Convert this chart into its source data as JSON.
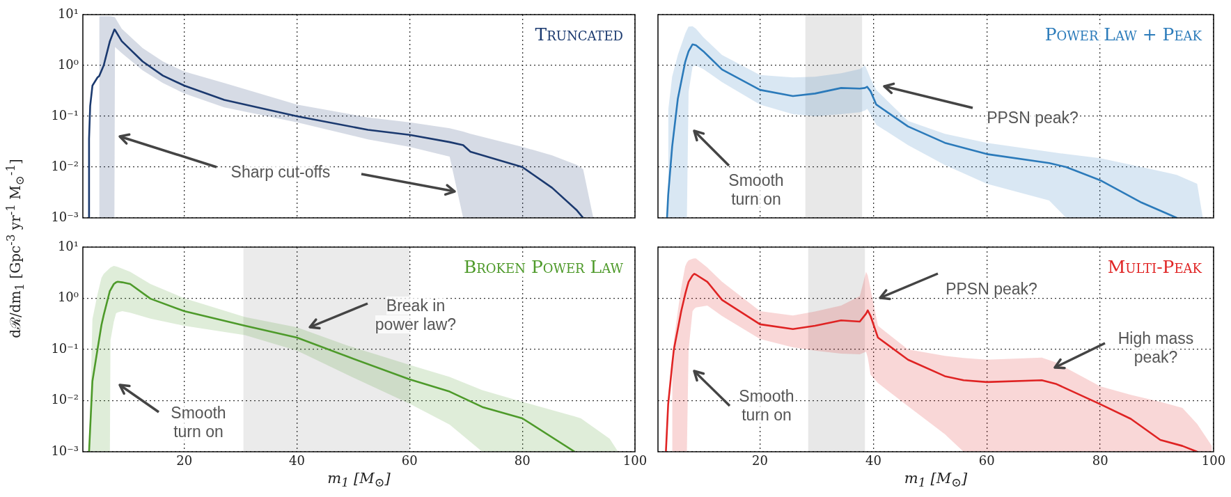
{
  "chart_data": [
    {
      "type": "line",
      "title": "Truncated",
      "log": true,
      "grid": true,
      "tick_labels": "y",
      "xlim": [
        2,
        100
      ],
      "xticks": [
        {
          "value": 20,
          "label": null
        },
        {
          "value": 40,
          "label": null
        },
        {
          "value": 60,
          "label": null
        },
        {
          "value": 80,
          "label": null
        },
        {
          "value": 100,
          "label": null
        }
      ],
      "ylim": [
        0.001,
        10
      ],
      "yticks": [
        {
          "value": 0.001,
          "label": "10⁻³"
        },
        {
          "value": 0.01,
          "label": "10⁻²"
        },
        {
          "value": 0.1,
          "label": "10⁻¹"
        },
        {
          "value": 1,
          "label": "10⁰"
        },
        {
          "value": 10,
          "label": "10¹"
        }
      ],
      "annotations": [
        "Sharp cut-offs"
      ],
      "series": [
        {
          "color": "#1b3a6f",
          "x": [
            3.0,
            3.1,
            3.3,
            3.7,
            4.6,
            4.9,
            5.7,
            6.8,
            7.6,
            7.7,
            8.9,
            12.6,
            16.2,
            20,
            27.1,
            40,
            52.6,
            60,
            67.1,
            69.5,
            70.8,
            80,
            85.3,
            89.7,
            90.8,
            92.6
          ],
          "values": [
            0.001,
            0.036,
            0.16,
            0.4,
            0.58,
            0.62,
            1.0,
            3.0,
            5.1,
            5.0,
            3.0,
            1.2,
            0.63,
            0.4,
            0.21,
            0.1,
            0.054,
            0.043,
            0.031,
            0.027,
            0.02,
            0.01,
            0.0039,
            0.0014,
            0.001,
            null
          ],
          "upper": [
            null,
            null,
            null,
            null,
            null,
            9.3,
            9.3,
            9.3,
            9.0,
            8.8,
            5.3,
            2.2,
            1.2,
            0.76,
            0.45,
            0.17,
            0.095,
            0.076,
            0.058,
            0.05,
            0.045,
            0.025,
            0.017,
            0.011,
            0.009,
            0.001
          ],
          "lower": [
            null,
            null,
            null,
            null,
            null,
            0.001,
            0.001,
            0.001,
            0.001,
            2.3,
            1.75,
            0.8,
            0.45,
            0.28,
            0.15,
            0.076,
            0.035,
            0.025,
            0.016,
            0.001,
            0.001,
            0.001,
            0.001,
            0.001,
            0.001,
            0.001
          ]
        }
      ]
    },
    {
      "type": "line",
      "title": "Power Law + Peak",
      "log": true,
      "grid": true,
      "tick_labels": false,
      "xlim": [
        2,
        100
      ],
      "xticks": [
        {
          "value": 20,
          "label": null
        },
        {
          "value": 40,
          "label": null
        },
        {
          "value": 60,
          "label": null
        },
        {
          "value": 80,
          "label": null
        },
        {
          "value": 100,
          "label": null
        }
      ],
      "ylim": [
        0.001,
        10
      ],
      "yticks": [
        {
          "value": 0.001,
          "label": null
        },
        {
          "value": 0.01,
          "label": null
        },
        {
          "value": 0.1,
          "label": null
        },
        {
          "value": 1,
          "label": null
        },
        {
          "value": 10,
          "label": null
        }
      ],
      "bands": [
        {
          "axis": "x",
          "from": 28,
          "to": 38,
          "color": "#e8e8e8"
        }
      ],
      "annotations": [
        "PPSN peak?",
        "Smooth turn on"
      ],
      "series": [
        {
          "color": "#2b7bba",
          "x": [
            3.6,
            3.8,
            4.5,
            5.5,
            6.8,
            7.1,
            7.4,
            8.1,
            8.7,
            10,
            13.3,
            20,
            25.8,
            29.7,
            34.3,
            37.6,
            38.5,
            38.9,
            39.5,
            40.5,
            46.1,
            52.6,
            60,
            71,
            74,
            80,
            87.3,
            91.9,
            93.5,
            97.1,
            98.1
          ],
          "values": [
            0.001,
            0.0028,
            0.025,
            0.22,
            1.17,
            1.5,
            1.9,
            2.6,
            2.5,
            1.9,
            0.83,
            0.33,
            0.25,
            0.28,
            0.36,
            0.35,
            0.36,
            0.38,
            0.31,
            0.17,
            0.063,
            0.03,
            0.018,
            0.012,
            0.01,
            0.0055,
            0.002,
            0.0012,
            0.001,
            null,
            null
          ],
          "upper": [
            null,
            0.13,
            0.6,
            1.6,
            4.2,
            5.0,
            5.8,
            5.9,
            5.3,
            3.6,
            1.6,
            0.65,
            0.58,
            0.6,
            0.7,
            0.85,
            1.0,
            0.8,
            0.55,
            0.33,
            0.081,
            0.045,
            0.03,
            0.02,
            0.018,
            0.015,
            0.01,
            0.0077,
            0.007,
            0.0047,
            0.001
          ],
          "lower": [
            null,
            0.001,
            0.001,
            0.001,
            0.001,
            0.001,
            0.3,
            0.95,
            1.0,
            0.85,
            0.47,
            0.17,
            0.11,
            0.1,
            0.11,
            0.12,
            0.13,
            0.14,
            0.11,
            0.068,
            0.027,
            0.011,
            0.0047,
            0.0022,
            0.001,
            0.001,
            0.001,
            0.001,
            0.001,
            0.001,
            0.001
          ]
        }
      ]
    },
    {
      "type": "line",
      "title": "Broken Power Law",
      "xlabel": "m$_{1}$ [M$_{⊙}$]",
      "ylabel": "dℛ/dm$_{1}$ [Gpc$^{-3}$ yr$^{-1}$ M$_{⊙}$$^{-1}$]",
      "log": true,
      "grid": true,
      "xlim": [
        2,
        100
      ],
      "xticks": [
        20,
        40,
        60,
        80,
        100
      ],
      "ylim": [
        0.001,
        10
      ],
      "yticks": [
        {
          "value": 0.001,
          "label": "10⁻³"
        },
        {
          "value": 0.01,
          "label": "10⁻²"
        },
        {
          "value": 0.1,
          "label": "10⁻¹"
        },
        {
          "value": 1,
          "label": "10⁰"
        },
        {
          "value": 10,
          "label": "10¹"
        }
      ],
      "bands": [
        {
          "axis": "x",
          "from": 30.5,
          "to": 60,
          "color": "#ebebeb"
        }
      ],
      "annotations": [
        "Break in power law?",
        "Smooth turn on"
      ],
      "series": [
        {
          "color": "#4e9a2a",
          "x": [
            3.1,
            3.7,
            4.6,
            5.3,
            5.7,
            6.8,
            6.9,
            7.5,
            7.9,
            8.2,
            9.0,
            10.4,
            14.0,
            20,
            30.8,
            40,
            48.9,
            60,
            67.1,
            72.9,
            80,
            89.3,
            90.4,
            95.5,
            97
          ],
          "values": [
            0.001,
            0.024,
            0.1,
            0.3,
            0.47,
            1.4,
            1.45,
            1.9,
            2.05,
            2.1,
            2.05,
            1.9,
            0.98,
            0.56,
            0.29,
            0.17,
            0.073,
            0.026,
            0.015,
            0.0075,
            0.0045,
            0.001,
            null,
            null,
            null
          ],
          "upper": [
            0.001,
            0.39,
            1.2,
            2.5,
            3.0,
            3.9,
            4.0,
            4.3,
            4.2,
            4.1,
            3.8,
            3.3,
            1.9,
            1.0,
            0.43,
            0.27,
            0.12,
            0.05,
            0.029,
            0.016,
            0.0095,
            0.0049,
            0.0045,
            0.0018,
            0.001
          ],
          "lower": [
            0.001,
            0.001,
            0.001,
            0.001,
            0.001,
            0.001,
            0.15,
            0.35,
            0.51,
            0.53,
            0.56,
            0.52,
            0.4,
            0.29,
            0.19,
            0.095,
            0.032,
            0.0087,
            0.0034,
            0.001,
            0.001,
            0.001,
            0.001,
            0.001,
            0.001
          ]
        }
      ]
    },
    {
      "type": "line",
      "title": "Multi-Peak",
      "xlabel": "m$_{1}$ [M$_{⊙}$]",
      "log": true,
      "grid": true,
      "tick_labels": "x",
      "xlim": [
        2,
        100
      ],
      "xticks": [
        20,
        40,
        60,
        80,
        100
      ],
      "ylim": [
        0.001,
        10
      ],
      "yticks": [
        {
          "value": 0.001,
          "label": null
        },
        {
          "value": 0.01,
          "label": null
        },
        {
          "value": 0.1,
          "label": null
        },
        {
          "value": 1,
          "label": null
        },
        {
          "value": 10,
          "label": null
        }
      ],
      "bands": [
        {
          "axis": "x",
          "from": 28.5,
          "to": 38.5,
          "color": "#e8e8e8"
        }
      ],
      "annotations": [
        "PPSN peak?",
        "High mass peak?",
        "Smooth turn on"
      ],
      "series": [
        {
          "color": "#e02424",
          "x": [
            3.4,
            3.8,
            4.5,
            4.8,
            5.5,
            6.1,
            6.8,
            7.1,
            7.4,
            8.1,
            8.4,
            8.7,
            10.7,
            13.3,
            20,
            25.8,
            29.7,
            34.3,
            37.6,
            38.7,
            39.0,
            39.5,
            40.8,
            46.1,
            52.6,
            55.9,
            60,
            69.7,
            72.3,
            80,
            85.4,
            90.6,
            94.5,
            97.1,
            99.7
          ],
          "values": [
            0.001,
            0.0085,
            0.05,
            0.1,
            0.25,
            0.56,
            1.2,
            1.6,
            2.1,
            2.8,
            3.0,
            2.9,
            2.1,
            0.93,
            0.31,
            0.25,
            0.29,
            0.37,
            0.35,
            0.5,
            0.58,
            0.45,
            0.17,
            0.063,
            0.03,
            0.025,
            0.023,
            0.025,
            0.021,
            0.0085,
            0.0044,
            0.0017,
            0.0013,
            0.001,
            null
          ],
          "upper": [
            null,
            null,
            0.045,
            0.15,
            0.56,
            1.6,
            4.2,
            5.0,
            5.5,
            5.9,
            6.0,
            6.0,
            4.0,
            2.1,
            0.56,
            0.46,
            0.55,
            0.72,
            1.1,
            3.3,
            2.8,
            1.5,
            0.29,
            0.1,
            0.075,
            0.068,
            0.063,
            0.069,
            0.055,
            0.019,
            0.013,
            0.0095,
            0.0072,
            0.0035,
            0.0013
          ],
          "lower": [
            null,
            null,
            0.001,
            0.001,
            0.001,
            0.001,
            0.001,
            0.001,
            0.1,
            0.56,
            0.62,
            0.66,
            0.72,
            0.45,
            0.16,
            0.11,
            0.095,
            0.083,
            0.08,
            0.09,
            0.07,
            0.032,
            0.022,
            0.0078,
            0.0022,
            0.001,
            0.001,
            0.001,
            0.001,
            0.001,
            0.001,
            0.001,
            0.001,
            0.001,
            0.001
          ]
        }
      ]
    }
  ]
}
